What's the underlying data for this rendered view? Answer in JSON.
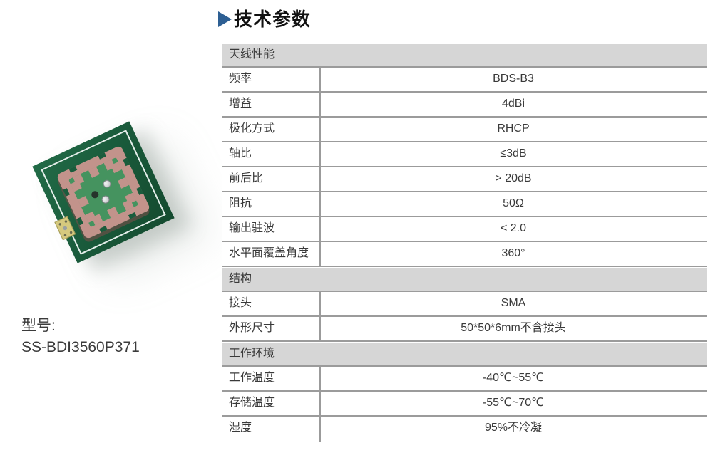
{
  "page": {
    "title": "技术参数"
  },
  "icons": {
    "title_arrow": "right-pointing-triangle"
  },
  "product": {
    "model_label": "型号:",
    "model_number": "SS-BDI3560P371",
    "photo_description": "green PCB antenna module with pink ceramic patch"
  },
  "table": {
    "sections": [
      {
        "header": "天线性能",
        "rows": [
          {
            "label": "频率",
            "value": "BDS-B3"
          },
          {
            "label": "增益",
            "value": "4dBi"
          },
          {
            "label": "极化方式",
            "value": "RHCP"
          },
          {
            "label": "轴比",
            "value": "≤3dB"
          },
          {
            "label": "前后比",
            "value": "> 20dB"
          },
          {
            "label": "阻抗",
            "value": "50Ω"
          },
          {
            "label": "输出驻波",
            "value": "< 2.0"
          },
          {
            "label": "水平面覆盖角度",
            "value": "360°"
          }
        ]
      },
      {
        "header": "结构",
        "rows": [
          {
            "label": "接头",
            "value": "SMA"
          },
          {
            "label": "外形尺寸",
            "value": "50*50*6mm不含接头"
          }
        ]
      },
      {
        "header": "工作环境",
        "rows": [
          {
            "label": "工作温度",
            "value": "-40℃~55℃"
          },
          {
            "label": "存储温度",
            "value": "-55℃~70℃"
          },
          {
            "label": "湿度",
            "value": "95%不冷凝"
          }
        ]
      }
    ]
  },
  "colors": {
    "accent_blue": "#2d5f93",
    "section_header_bg": "#d6d6d6",
    "grid_line": "#9b9b9b",
    "text": "#3a3a3a",
    "pcb_green": "#1a5c3c",
    "patch_copper": "#c2938b",
    "patch_green": "#45935f",
    "gold_pad": "#d6c97e"
  }
}
